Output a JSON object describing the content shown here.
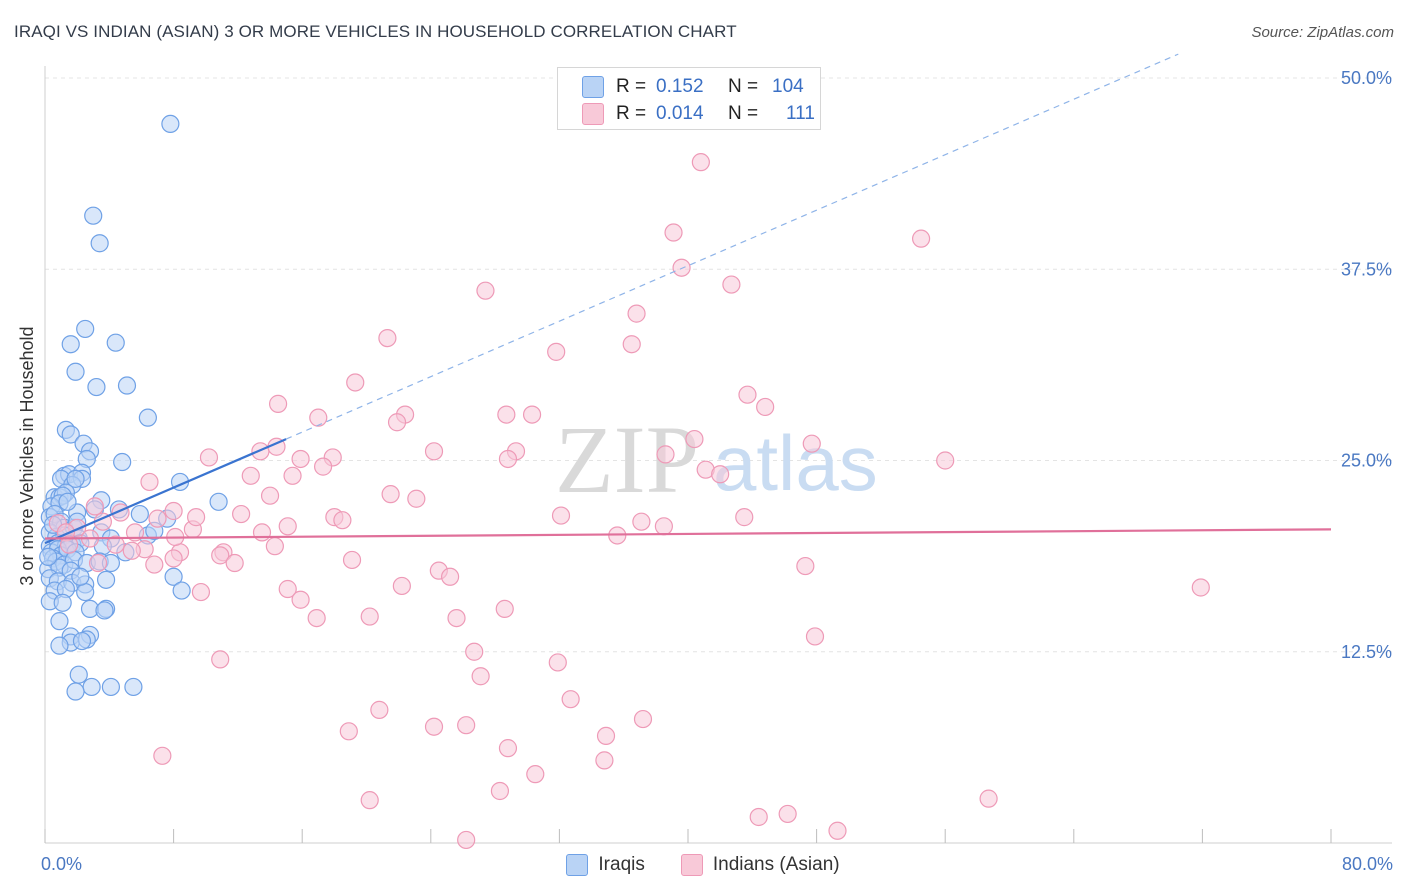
{
  "title": "IRAQI VS INDIAN (ASIAN) 3 OR MORE VEHICLES IN HOUSEHOLD CORRELATION CHART",
  "source": "Source: ZipAtlas.com",
  "watermark": {
    "zip": "ZIP",
    "atlas": "atlas"
  },
  "legend_top": [
    {
      "r_label": "R =",
      "r_value": "0.152",
      "n_label": "N =",
      "n_value": "104",
      "color": "#6fa1e6",
      "fill": "#b9d3f5"
    },
    {
      "r_label": "R =",
      "r_value": "0.014",
      "n_label": "N =",
      "n_value": "111",
      "color": "#ee9ab7",
      "fill": "#f8c9d8"
    }
  ],
  "chart_data": {
    "type": "scatter",
    "title": "IRAQI VS INDIAN (ASIAN) 3 OR MORE VEHICLES IN HOUSEHOLD CORRELATION CHART",
    "xlabel": "",
    "ylabel": "3 or more Vehicles in Household",
    "xlim": [
      0,
      80
    ],
    "ylim": [
      0,
      50
    ],
    "x_tick_labels": [
      {
        "value": 0,
        "label": "0.0%"
      },
      {
        "value": 80,
        "label": "80.0%"
      }
    ],
    "y_tick_labels": [
      {
        "value": 12.5,
        "label": "12.5%"
      },
      {
        "value": 25,
        "label": "25.0%"
      },
      {
        "value": 37.5,
        "label": "37.5%"
      },
      {
        "value": 50,
        "label": "50.0%"
      }
    ],
    "x_minor_ticks": [
      0,
      8,
      16,
      24,
      32,
      40,
      48,
      56,
      64,
      72,
      80
    ],
    "grid": true,
    "legend": [
      "Iraqis",
      "Indians (Asian)"
    ],
    "series": [
      {
        "name": "Iraqis",
        "stroke": "#6fa1e6",
        "fill": "#b9d3f5",
        "trend": {
          "x0": 0,
          "y0": 19.6,
          "x1": 15,
          "y1": 26.4,
          "solid_until": 15,
          "dashed_until": 70.5,
          "color": "#3a74d0"
        },
        "points": [
          [
            7.8,
            47.0
          ],
          [
            3.0,
            41.0
          ],
          [
            3.4,
            39.2
          ],
          [
            2.5,
            33.6
          ],
          [
            4.4,
            32.7
          ],
          [
            1.6,
            32.6
          ],
          [
            1.9,
            30.8
          ],
          [
            3.2,
            29.8
          ],
          [
            5.1,
            29.9
          ],
          [
            6.4,
            27.8
          ],
          [
            1.3,
            27.0
          ],
          [
            1.6,
            26.7
          ],
          [
            2.4,
            26.1
          ],
          [
            2.8,
            25.6
          ],
          [
            2.6,
            25.1
          ],
          [
            4.8,
            24.9
          ],
          [
            1.2,
            24.0
          ],
          [
            1.5,
            24.1
          ],
          [
            1.0,
            23.8
          ],
          [
            2.3,
            24.2
          ],
          [
            2.3,
            23.8
          ],
          [
            1.7,
            23.4
          ],
          [
            1.9,
            23.8
          ],
          [
            0.6,
            22.6
          ],
          [
            0.9,
            22.6
          ],
          [
            1.3,
            22.9
          ],
          [
            1.1,
            22.7
          ],
          [
            3.5,
            22.4
          ],
          [
            0.4,
            22.0
          ],
          [
            0.9,
            22.2
          ],
          [
            2.0,
            21.6
          ],
          [
            3.1,
            21.8
          ],
          [
            4.6,
            21.8
          ],
          [
            7.6,
            21.2
          ],
          [
            0.3,
            21.3
          ],
          [
            0.6,
            21.5
          ],
          [
            1.0,
            21.0
          ],
          [
            1.2,
            20.6
          ],
          [
            1.8,
            20.6
          ],
          [
            2.0,
            21.0
          ],
          [
            0.3,
            20.3
          ],
          [
            0.7,
            20.0
          ],
          [
            1.2,
            20.1
          ],
          [
            2.1,
            19.9
          ],
          [
            3.5,
            20.3
          ],
          [
            4.1,
            19.9
          ],
          [
            6.4,
            20.1
          ],
          [
            0.3,
            19.4
          ],
          [
            0.8,
            19.6
          ],
          [
            1.3,
            19.4
          ],
          [
            1.7,
            19.5
          ],
          [
            2.2,
            19.6
          ],
          [
            3.6,
            19.4
          ],
          [
            0.4,
            19.0
          ],
          [
            0.8,
            19.2
          ],
          [
            1.0,
            18.8
          ],
          [
            1.4,
            19.2
          ],
          [
            1.9,
            19.0
          ],
          [
            5.0,
            19.0
          ],
          [
            0.5,
            18.6
          ],
          [
            0.7,
            18.4
          ],
          [
            1.2,
            18.2
          ],
          [
            1.8,
            18.5
          ],
          [
            0.2,
            17.9
          ],
          [
            0.9,
            18.0
          ],
          [
            1.6,
            17.8
          ],
          [
            2.6,
            18.3
          ],
          [
            3.4,
            18.4
          ],
          [
            4.1,
            18.3
          ],
          [
            0.3,
            17.3
          ],
          [
            0.8,
            17.1
          ],
          [
            1.7,
            17.0
          ],
          [
            2.5,
            16.9
          ],
          [
            3.8,
            17.2
          ],
          [
            8.0,
            17.4
          ],
          [
            0.6,
            16.5
          ],
          [
            1.3,
            16.6
          ],
          [
            2.5,
            16.4
          ],
          [
            8.5,
            16.5
          ],
          [
            0.3,
            15.8
          ],
          [
            1.1,
            15.7
          ],
          [
            2.8,
            15.3
          ],
          [
            3.8,
            15.3
          ],
          [
            3.7,
            15.2
          ],
          [
            0.9,
            14.5
          ],
          [
            1.6,
            13.5
          ],
          [
            2.8,
            13.6
          ],
          [
            1.6,
            13.1
          ],
          [
            2.6,
            13.3
          ],
          [
            2.3,
            13.2
          ],
          [
            0.9,
            12.9
          ],
          [
            2.1,
            11.0
          ],
          [
            2.9,
            10.2
          ],
          [
            1.9,
            9.9
          ],
          [
            4.1,
            10.2
          ],
          [
            5.5,
            10.2
          ],
          [
            10.8,
            22.3
          ],
          [
            8.4,
            23.6
          ],
          [
            6.8,
            20.4
          ],
          [
            5.9,
            21.5
          ],
          [
            0.5,
            20.8
          ],
          [
            0.2,
            18.7
          ],
          [
            1.4,
            22.3
          ],
          [
            2.2,
            17.4
          ]
        ]
      },
      {
        "name": "Indians (Asian)",
        "stroke": "#ee9ab7",
        "fill": "#f8c9d8",
        "trend": {
          "x0": 0,
          "y0": 19.9,
          "x1": 80,
          "y1": 20.5,
          "solid_until": 80,
          "dashed_until": 80,
          "color": "#e0709a"
        },
        "points": [
          [
            40.8,
            44.5
          ],
          [
            39.1,
            39.9
          ],
          [
            54.5,
            39.5
          ],
          [
            39.6,
            37.6
          ],
          [
            42.7,
            36.5
          ],
          [
            27.4,
            36.1
          ],
          [
            36.8,
            34.6
          ],
          [
            21.3,
            33.0
          ],
          [
            36.5,
            32.6
          ],
          [
            31.8,
            32.1
          ],
          [
            19.3,
            30.1
          ],
          [
            43.7,
            29.3
          ],
          [
            44.8,
            28.5
          ],
          [
            14.5,
            28.7
          ],
          [
            17.0,
            27.8
          ],
          [
            22.4,
            28.0
          ],
          [
            28.7,
            28.0
          ],
          [
            30.3,
            28.0
          ],
          [
            21.9,
            27.5
          ],
          [
            40.4,
            26.4
          ],
          [
            13.4,
            25.6
          ],
          [
            14.4,
            25.9
          ],
          [
            24.2,
            25.6
          ],
          [
            29.3,
            25.6
          ],
          [
            38.6,
            25.4
          ],
          [
            47.7,
            26.1
          ],
          [
            10.2,
            25.2
          ],
          [
            15.9,
            25.1
          ],
          [
            17.9,
            25.2
          ],
          [
            28.8,
            25.1
          ],
          [
            56.0,
            25.0
          ],
          [
            17.3,
            24.6
          ],
          [
            41.1,
            24.4
          ],
          [
            42.0,
            24.1
          ],
          [
            12.8,
            24.0
          ],
          [
            15.4,
            24.0
          ],
          [
            6.5,
            23.6
          ],
          [
            21.5,
            22.8
          ],
          [
            14.0,
            22.7
          ],
          [
            23.1,
            22.5
          ],
          [
            3.1,
            22.0
          ],
          [
            4.7,
            21.6
          ],
          [
            7.0,
            21.2
          ],
          [
            8.0,
            21.7
          ],
          [
            12.2,
            21.5
          ],
          [
            18.0,
            21.3
          ],
          [
            18.5,
            21.1
          ],
          [
            32.1,
            21.4
          ],
          [
            37.1,
            21.0
          ],
          [
            43.5,
            21.3
          ],
          [
            2.0,
            20.6
          ],
          [
            3.6,
            21.0
          ],
          [
            5.6,
            20.3
          ],
          [
            9.2,
            20.5
          ],
          [
            15.1,
            20.7
          ],
          [
            0.8,
            20.9
          ],
          [
            1.3,
            20.3
          ],
          [
            13.5,
            20.3
          ],
          [
            35.6,
            20.1
          ],
          [
            38.5,
            20.7
          ],
          [
            2.8,
            19.9
          ],
          [
            4.4,
            19.5
          ],
          [
            6.2,
            19.2
          ],
          [
            8.4,
            19.0
          ],
          [
            11.1,
            19.0
          ],
          [
            14.3,
            19.4
          ],
          [
            1.5,
            19.5
          ],
          [
            5.4,
            19.1
          ],
          [
            8.0,
            18.6
          ],
          [
            10.9,
            18.8
          ],
          [
            11.8,
            18.3
          ],
          [
            19.1,
            18.5
          ],
          [
            6.8,
            18.2
          ],
          [
            3.3,
            18.3
          ],
          [
            47.3,
            18.1
          ],
          [
            24.5,
            17.8
          ],
          [
            25.2,
            17.4
          ],
          [
            15.1,
            16.6
          ],
          [
            22.2,
            16.8
          ],
          [
            71.9,
            16.7
          ],
          [
            9.7,
            16.4
          ],
          [
            15.9,
            15.9
          ],
          [
            28.6,
            15.3
          ],
          [
            16.9,
            14.7
          ],
          [
            20.2,
            14.8
          ],
          [
            25.6,
            14.7
          ],
          [
            47.9,
            13.5
          ],
          [
            26.7,
            12.5
          ],
          [
            10.9,
            12.0
          ],
          [
            31.9,
            11.8
          ],
          [
            27.1,
            10.9
          ],
          [
            32.7,
            9.4
          ],
          [
            20.8,
            8.7
          ],
          [
            37.2,
            8.1
          ],
          [
            26.2,
            7.7
          ],
          [
            24.2,
            7.6
          ],
          [
            18.9,
            7.3
          ],
          [
            34.9,
            7.0
          ],
          [
            28.8,
            6.2
          ],
          [
            7.3,
            5.7
          ],
          [
            34.8,
            5.4
          ],
          [
            30.5,
            4.5
          ],
          [
            28.3,
            3.4
          ],
          [
            20.2,
            2.8
          ],
          [
            44.4,
            1.7
          ],
          [
            46.2,
            1.9
          ],
          [
            49.3,
            0.8
          ],
          [
            26.2,
            0.2
          ],
          [
            58.7,
            2.9
          ],
          [
            8.1,
            20.0
          ],
          [
            9.4,
            21.3
          ]
        ]
      }
    ]
  },
  "legend_bottom": [
    {
      "label": "Iraqis",
      "color": "#6fa1e6",
      "fill": "#b9d3f5"
    },
    {
      "label": "Indians (Asian)",
      "color": "#ee9ab7",
      "fill": "#f8c9d8"
    }
  ]
}
